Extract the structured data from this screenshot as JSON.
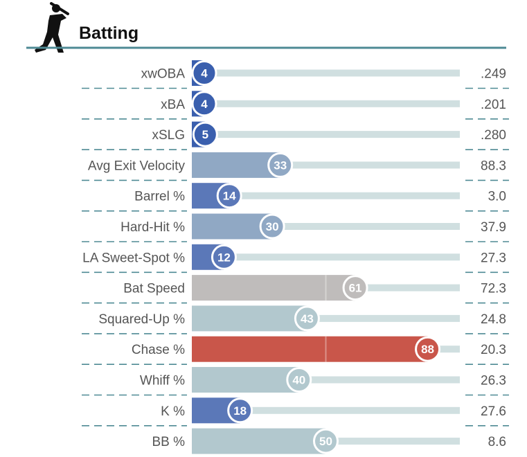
{
  "header": {
    "title": "Batting",
    "icon": "baseball-batter-icon"
  },
  "colors": {
    "header_rule": "#4e8a94",
    "divider": "#4e8a94",
    "track": "#d0dfe0",
    "bar_low": "#3a5fae",
    "bar_low_mid": "#5b78b8",
    "bar_mid_low": "#90a8c4",
    "bar_mid": "#b2c8ce",
    "bar_neutral": "#bfbcbb",
    "bar_high": "#c9564a"
  },
  "chart_data": {
    "type": "bar",
    "orientation": "horizontal",
    "title": "Batting",
    "xlim": [
      0,
      100
    ],
    "grid": false,
    "categories": [
      "xwOBA",
      "xBA",
      "xSLG",
      "Avg Exit Velocity",
      "Barrel %",
      "Hard-Hit %",
      "LA Sweet-Spot %",
      "Bat Speed",
      "Squared-Up %",
      "Chase %",
      "Whiff %",
      "K %",
      "BB %"
    ],
    "series": [
      {
        "values": [
          4,
          4,
          5,
          33,
          14,
          30,
          12,
          61,
          43,
          88,
          40,
          18,
          50
        ],
        "colors": [
          "#3a5fae",
          "#3a5fae",
          "#3a5fae",
          "#90a8c4",
          "#5b78b8",
          "#90a8c4",
          "#5b78b8",
          "#bfbcbb",
          "#b2c8ce",
          "#c9564a",
          "#b2c8ce",
          "#5b78b8",
          "#b2c8ce"
        ]
      }
    ],
    "stat_values": [
      ".249",
      ".201",
      ".280",
      "88.3",
      "3.0",
      "37.9",
      "27.3",
      "72.3",
      "24.8",
      "20.3",
      "26.3",
      "27.6",
      "8.6"
    ]
  }
}
